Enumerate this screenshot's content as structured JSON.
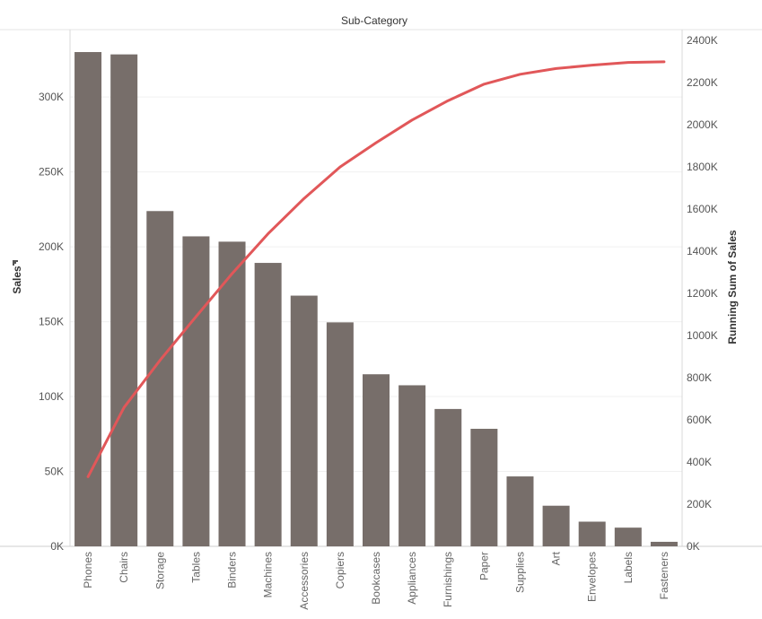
{
  "chart_data": {
    "type": "bar",
    "title": "Sub-Category",
    "ylabel": "Sales",
    "ylabel_right": "Running Sum of Sales",
    "sort_icon": "sort-descending-icon",
    "categories": [
      "Phones",
      "Chairs",
      "Storage",
      "Tables",
      "Binders",
      "Machines",
      "Accessories",
      "Copiers",
      "Bookcases",
      "Appliances",
      "Furnishings",
      "Paper",
      "Supplies",
      "Art",
      "Envelopes",
      "Labels",
      "Fasteners"
    ],
    "series": [
      {
        "kind": "bar",
        "color": "#776E6A",
        "values": [
          330007,
          328449,
          223844,
          206966,
          203413,
          189239,
          167380,
          149528,
          114880,
          107532,
          91705,
          78479,
          46674,
          27119,
          16476,
          12486,
          3024
        ]
      },
      {
        "kind": "line",
        "axis": "right",
        "color": "#E15759",
        "values": [
          330007,
          658456,
          882300,
          1089266,
          1292679,
          1481918,
          1649298,
          1798826,
          1913706,
          2021238,
          2112943,
          2191422,
          2238096,
          2265215,
          2281691,
          2294177,
          2297201
        ]
      }
    ],
    "ylim": [
      0,
      345000
    ],
    "ylim_right": [
      0,
      2450000
    ],
    "yticks": [
      0,
      50000,
      100000,
      150000,
      200000,
      250000,
      300000
    ],
    "ytick_labels": [
      "0K",
      "50K",
      "100K",
      "150K",
      "200K",
      "250K",
      "300K"
    ],
    "yticks_right": [
      0,
      200000,
      400000,
      600000,
      800000,
      1000000,
      1200000,
      1400000,
      1600000,
      1800000,
      2000000,
      2200000,
      2400000
    ],
    "ytick_labels_right": [
      "0K",
      "200K",
      "400K",
      "600K",
      "800K",
      "1000K",
      "1200K",
      "1400K",
      "1600K",
      "1800K",
      "2000K",
      "2200K",
      "2400K"
    ],
    "grid": true
  }
}
